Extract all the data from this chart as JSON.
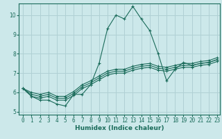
{
  "xlabel": "Humidex (Indice chaleur)",
  "ylabel": "",
  "xlim": [
    -0.5,
    23.3
  ],
  "ylim": [
    4.85,
    10.6
  ],
  "background_color": "#cce8ea",
  "grid_color": "#b0d0d4",
  "line_color": "#1a6b5a",
  "lines": [
    [
      6.2,
      5.8,
      5.6,
      5.6,
      5.4,
      5.3,
      5.9,
      5.9,
      6.4,
      7.5,
      9.3,
      10.0,
      9.8,
      10.45,
      9.8,
      9.2,
      8.0,
      6.6,
      7.2,
      7.55,
      7.4,
      7.5,
      7.55,
      7.7
    ],
    [
      6.2,
      5.8,
      5.7,
      5.8,
      5.6,
      5.6,
      5.85,
      6.2,
      6.4,
      6.65,
      6.9,
      7.0,
      7.0,
      7.15,
      7.25,
      7.3,
      7.15,
      7.1,
      7.2,
      7.3,
      7.3,
      7.4,
      7.45,
      7.6
    ],
    [
      6.2,
      5.9,
      5.8,
      5.9,
      5.7,
      5.7,
      5.95,
      6.3,
      6.5,
      6.75,
      7.0,
      7.1,
      7.1,
      7.25,
      7.35,
      7.4,
      7.25,
      7.2,
      7.3,
      7.4,
      7.4,
      7.5,
      7.55,
      7.7
    ],
    [
      6.2,
      6.0,
      5.9,
      6.0,
      5.8,
      5.8,
      6.05,
      6.4,
      6.6,
      6.85,
      7.1,
      7.2,
      7.2,
      7.35,
      7.45,
      7.5,
      7.35,
      7.3,
      7.4,
      7.5,
      7.5,
      7.6,
      7.65,
      7.8
    ]
  ],
  "xticks": [
    0,
    1,
    2,
    3,
    4,
    5,
    6,
    7,
    8,
    9,
    10,
    11,
    12,
    13,
    14,
    15,
    16,
    17,
    18,
    19,
    20,
    21,
    22,
    23
  ],
  "yticks": [
    5,
    6,
    7,
    8,
    9,
    10
  ],
  "axis_fontsize": 6.5,
  "tick_fontsize": 5.5
}
